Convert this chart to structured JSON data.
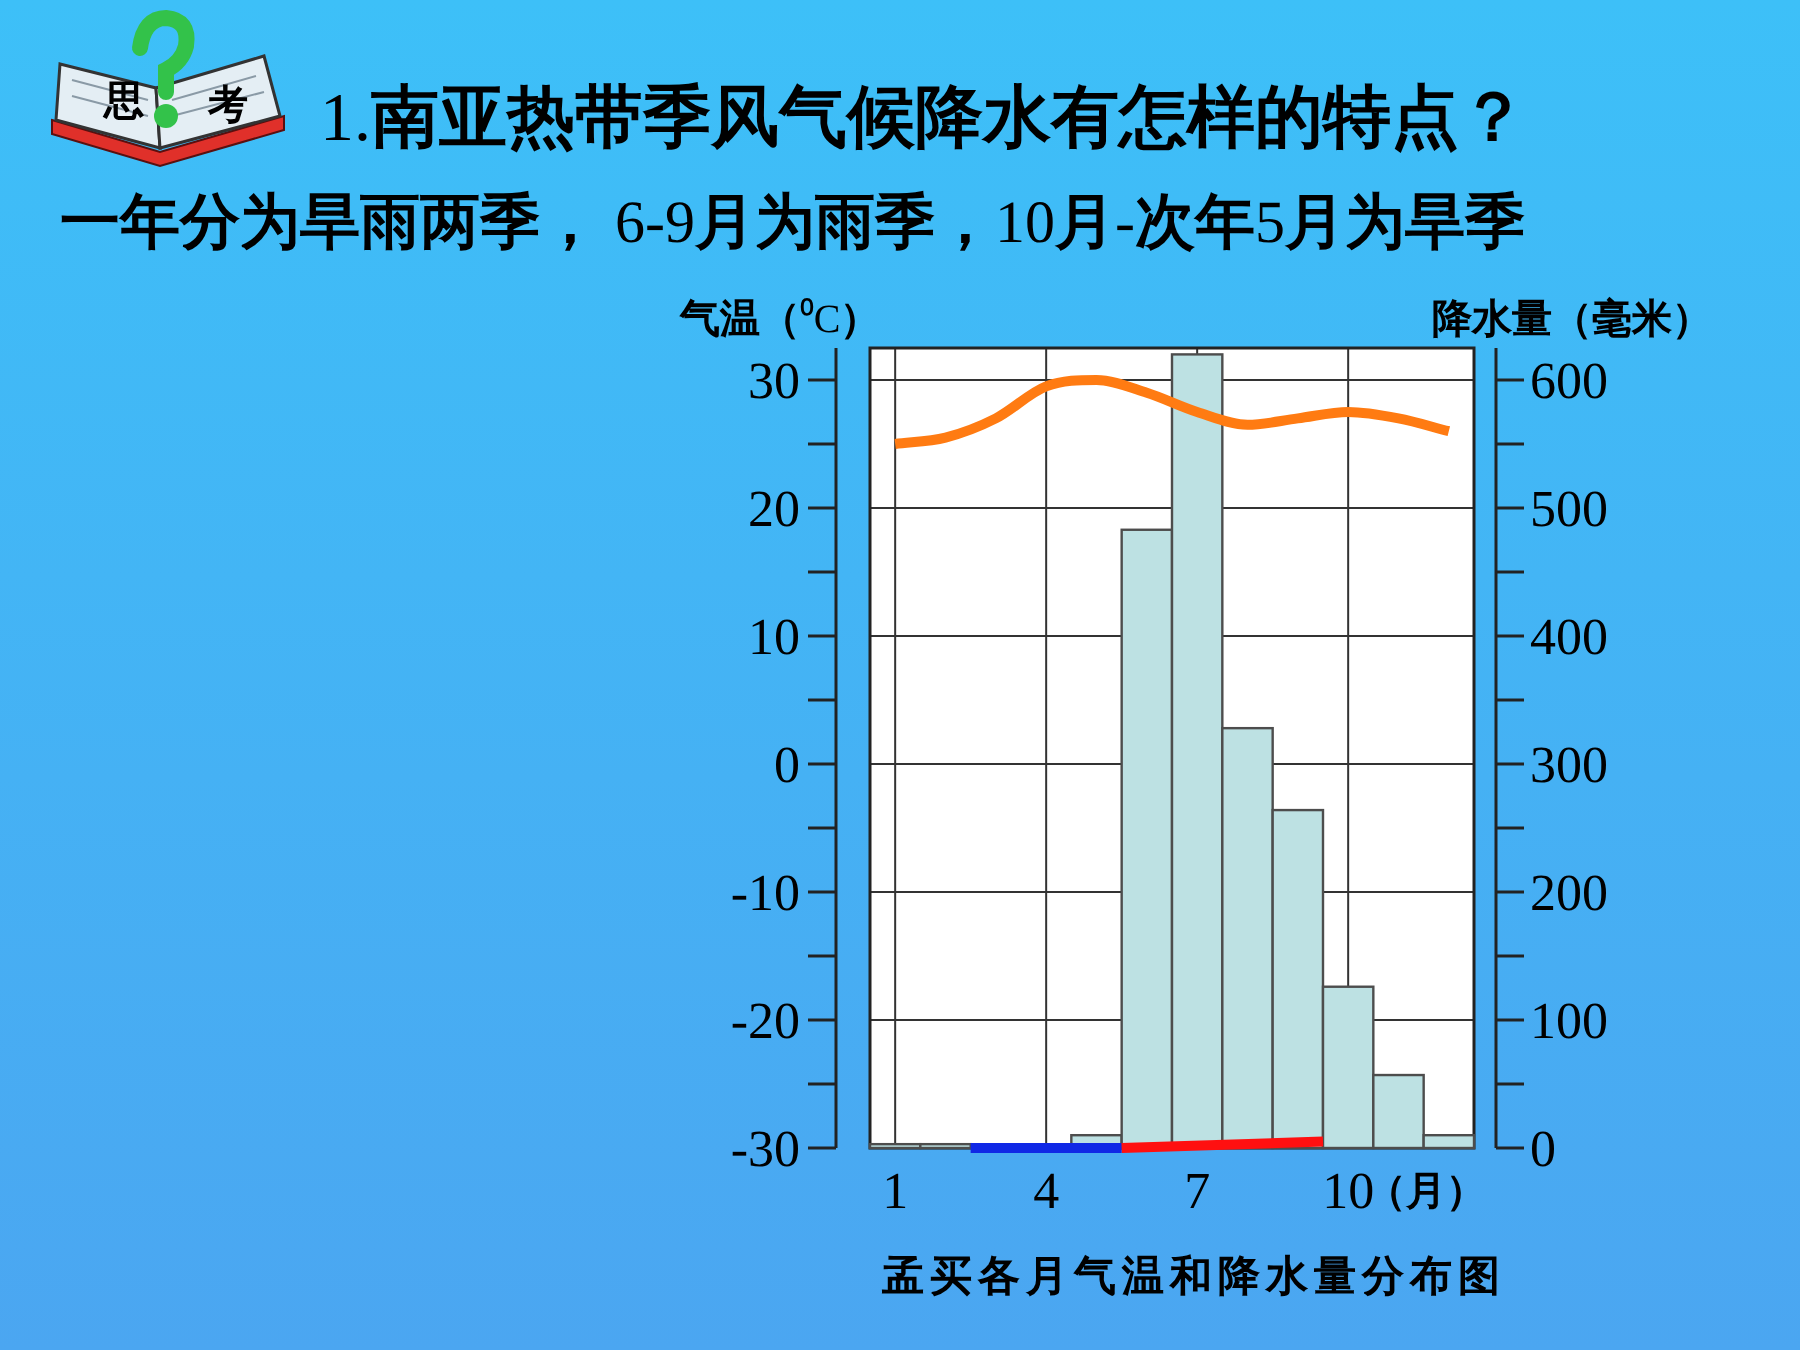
{
  "chart_data": {
    "type": "bar",
    "title": "1.南亚热带季风气候降水有怎样的特点？",
    "subtitle": "一年分为旱雨两季， 6-9月为雨季，10月-次年5月为旱季",
    "xlabel": "（月）",
    "ylabel": "气温（⁰C）",
    "y2label": "降水量（毫米）",
    "x": [
      1,
      2,
      3,
      4,
      5,
      6,
      7,
      8,
      9,
      10,
      11,
      12
    ],
    "xlim": [
      0.5,
      12.5
    ],
    "xticks": [
      1,
      4,
      7,
      10
    ],
    "ylim": [
      -30,
      32.5
    ],
    "yticks": [
      -30,
      {
        "value": -25,
        "label": null
      },
      -20,
      {
        "value": -15,
        "label": null
      },
      -10,
      {
        "value": -5,
        "label": null
      },
      0,
      {
        "value": 5,
        "label": null
      },
      10,
      {
        "value": 15,
        "label": null
      },
      20,
      {
        "value": 25,
        "label": null
      },
      30
    ],
    "y2lim": [
      0,
      625
    ],
    "y2ticks": [
      0,
      {
        "value": 50,
        "label": null
      },
      100,
      {
        "value": 150,
        "label": null
      },
      200,
      {
        "value": 250,
        "label": null
      },
      300,
      {
        "value": 350,
        "label": null
      },
      400,
      {
        "value": 450,
        "label": null
      },
      500,
      {
        "value": 550,
        "label": null
      },
      600
    ],
    "series": [
      {
        "axis": "y2",
        "color": "#bde1e3",
        "values": [
          3,
          3,
          null,
          null,
          10,
          483,
          620,
          328,
          264,
          126,
          57,
          10
        ]
      },
      {
        "type": "line",
        "axis": "y",
        "color": "#ff7b12",
        "values": [
          25,
          25.5,
          27,
          29.5,
          30,
          29,
          27.5,
          26.5,
          27,
          27.5,
          27,
          26
        ]
      },
      {
        "type": "line",
        "axis": "y",
        "color": "#1028e6",
        "x": [
          2.5,
          5.5
        ],
        "values": [
          -30,
          -30
        ]
      },
      {
        "type": "line",
        "axis": "y",
        "color": "#ff1010",
        "x": [
          5.5,
          9.5
        ],
        "values": [
          -30,
          -29.5
        ]
      }
    ],
    "grid": true,
    "annotations": [
      "思",
      "考",
      "孟买各月气温和降水量分布图"
    ]
  }
}
